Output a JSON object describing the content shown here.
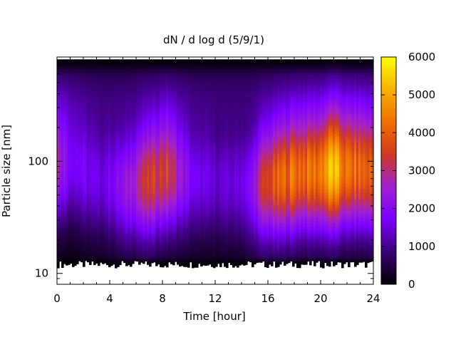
{
  "chart_data": {
    "type": "heatmap",
    "title": "dN / d log d (5/9/1)",
    "xlabel": "Time [hour]",
    "ylabel": "Particle size [nm]",
    "xlim": [
      0,
      24
    ],
    "ylim": [
      8,
      850
    ],
    "y_scale": "log",
    "x_ticks": [
      "0",
      "4",
      "8",
      "12",
      "16",
      "20",
      "24"
    ],
    "y_ticks": [
      "10",
      "100"
    ],
    "colorbar": {
      "range": [
        0,
        6000
      ],
      "ticks": [
        "0",
        "1000",
        "2000",
        "3000",
        "4000",
        "5000",
        "6000"
      ],
      "palette": [
        "#000000",
        "#3c0078",
        "#7a00ff",
        "#a020d0",
        "#d03a20",
        "#f07000",
        "#f8b000",
        "#ffff00"
      ]
    },
    "grid": false,
    "description_of_pattern": {
      "peak_diameter_nm": [
        95,
        95,
        80,
        70,
        65,
        60,
        65,
        70,
        80,
        75,
        70,
        70,
        65,
        65,
        60,
        65,
        70,
        75,
        80,
        80,
        85,
        85,
        85,
        80
      ],
      "peak_value": [
        2800,
        1800,
        1700,
        1500,
        1800,
        2200,
        3000,
        3400,
        3500,
        2400,
        1600,
        1500,
        1400,
        1500,
        1800,
        3300,
        3900,
        4300,
        4200,
        4300,
        5400,
        4200,
        4100,
        3900
      ]
    }
  }
}
